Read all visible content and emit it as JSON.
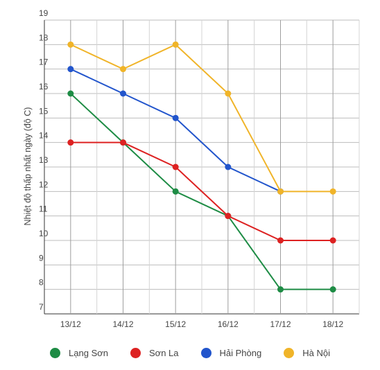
{
  "chart_data": {
    "type": "line",
    "ylabel": "Nhiệt độ thấp nhất ngày (độ C)",
    "xlabel": "",
    "categories": [
      "13/12",
      "14/12",
      "15/12",
      "16/12",
      "17/12",
      "18/12"
    ],
    "ylim": [
      7,
      19
    ],
    "yticks": [
      7,
      8,
      9,
      10,
      11,
      12,
      13,
      14,
      15,
      16,
      17,
      18,
      19
    ],
    "grid": true,
    "legend_position": "bottom",
    "series": [
      {
        "name": "Lạng Sơn",
        "color": "#1e8c45",
        "values": [
          16,
          14,
          12,
          11,
          8,
          8
        ]
      },
      {
        "name": "Sơn La",
        "color": "#dd2222",
        "values": [
          14,
          14,
          13,
          11,
          10,
          10
        ]
      },
      {
        "name": "Hải Phòng",
        "color": "#2255cc",
        "values": [
          17,
          16,
          15,
          13,
          12,
          null
        ]
      },
      {
        "name": "Hà Nội",
        "color": "#f0b429",
        "values": [
          18,
          17,
          18,
          16,
          12,
          12
        ]
      }
    ]
  }
}
